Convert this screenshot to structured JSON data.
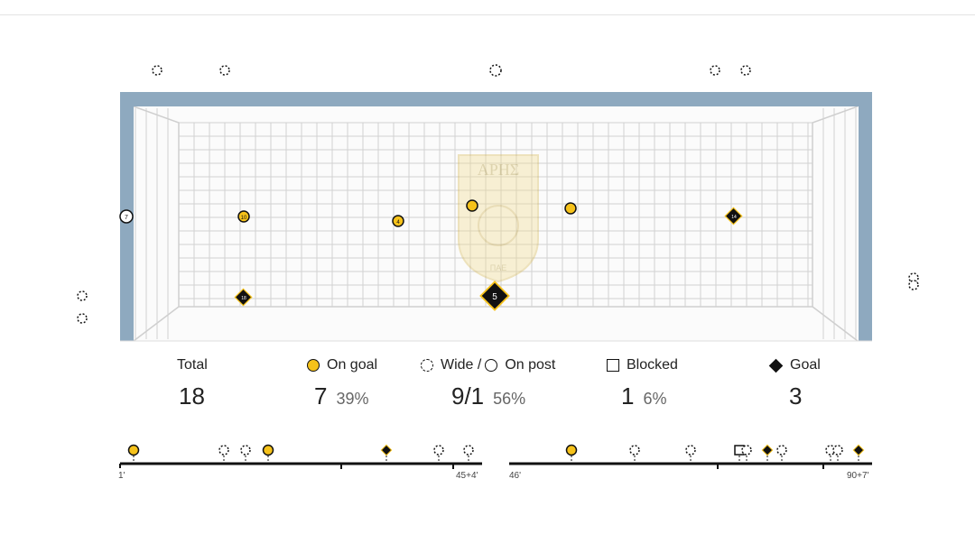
{
  "goal_logo": {
    "name": "ΑΡΗΣ",
    "sub": "ΠΑΕ"
  },
  "stats": {
    "total": {
      "label": "Total",
      "value": "18"
    },
    "on_goal": {
      "label": "On goal",
      "value": "7",
      "pct": "39%"
    },
    "wide": {
      "label_wide": "Wide /",
      "label_post": "On post",
      "value": "9/1",
      "pct": "56%"
    },
    "blocked": {
      "label": "Blocked",
      "value": "1",
      "pct": "6%"
    },
    "goal": {
      "label": "Goal",
      "value": "3"
    }
  },
  "timeline": {
    "first_half": {
      "start": "1'",
      "end": "45+4'"
    },
    "second_half": {
      "start": "46'",
      "end": "90+7'"
    }
  },
  "shot_labels": [
    "7",
    "10",
    "4",
    "5",
    "14",
    "18",
    "5"
  ],
  "colors": {
    "on_goal": "#f6c21a",
    "post": "#8ea9bf",
    "ink": "#111111"
  }
}
